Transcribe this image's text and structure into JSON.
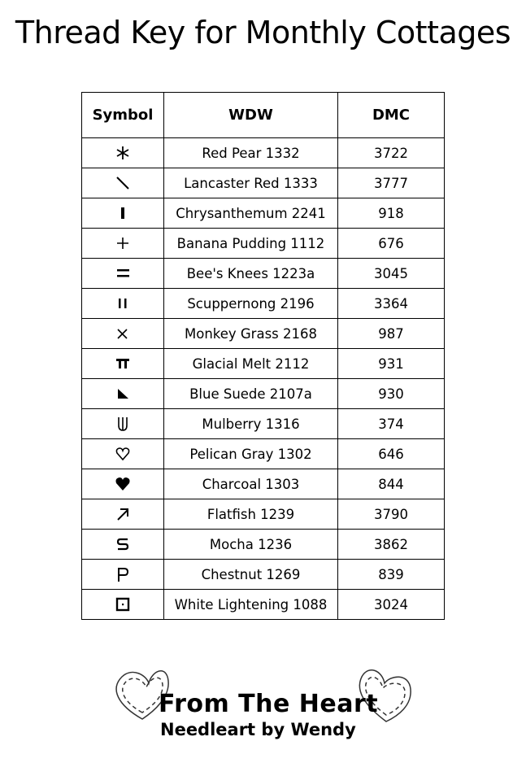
{
  "title": "Thread Key for Monthly Cottages",
  "table": {
    "headers": [
      "Symbol",
      "WDW",
      "DMC"
    ],
    "rows": [
      {
        "symbol": "asterisk-icon",
        "wdw": "Red Pear 1332",
        "dmc": "3722"
      },
      {
        "symbol": "backslash-icon",
        "wdw": "Lancaster Red 1333",
        "dmc": "3777"
      },
      {
        "symbol": "vertical-bar-icon",
        "wdw": "Chrysanthemum 2241",
        "dmc": "918"
      },
      {
        "symbol": "plus-icon",
        "wdw": "Banana Pudding 1112",
        "dmc": "676"
      },
      {
        "symbol": "equals-icon",
        "wdw": "Bee's Knees 1223a",
        "dmc": "3045"
      },
      {
        "symbol": "double-bar-icon",
        "wdw": "Scuppernong 2196",
        "dmc": "3364"
      },
      {
        "symbol": "x-icon",
        "wdw": "Monkey Grass 2168",
        "dmc": "987"
      },
      {
        "symbol": "pi-icon",
        "wdw": "Glacial Melt 2112",
        "dmc": "931"
      },
      {
        "symbol": "triangle-icon",
        "wdw": "Blue Suede 2107a",
        "dmc": "930"
      },
      {
        "symbol": "trident-icon",
        "wdw": "Mulberry 1316",
        "dmc": "374"
      },
      {
        "symbol": "heart-outline-icon",
        "wdw": "Pelican Gray 1302",
        "dmc": "646"
      },
      {
        "symbol": "heart-filled-icon",
        "wdw": "Charcoal 1303",
        "dmc": "844"
      },
      {
        "symbol": "arrow-up-right-icon",
        "wdw": "Flatfish 1239",
        "dmc": "3790"
      },
      {
        "symbol": "s-icon",
        "wdw": "Mocha 1236",
        "dmc": "3862"
      },
      {
        "symbol": "p-icon",
        "wdw": "Chestnut 1269",
        "dmc": "839"
      },
      {
        "symbol": "dotted-square-icon",
        "wdw": "White Lightening 1088",
        "dmc": "3024"
      }
    ]
  },
  "logo": {
    "line1": "From The Heart",
    "line2": "Needleart by Wendy"
  }
}
